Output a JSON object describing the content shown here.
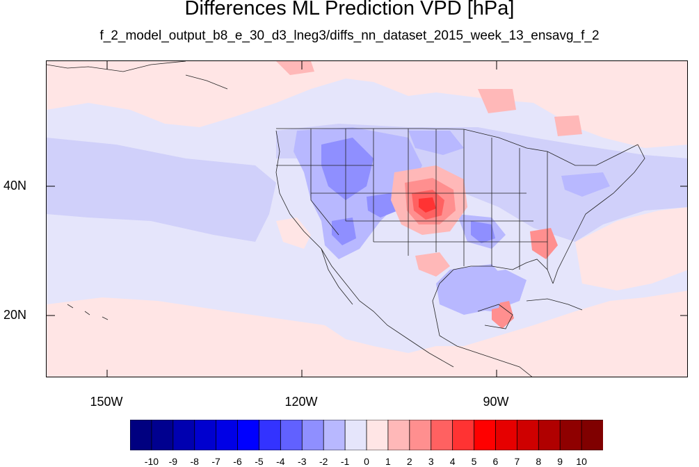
{
  "title": "Differences ML Prediction VPD [hPa]",
  "subtitle": "f_2_model_output_b8_e_30_d3_lneg3/diffs_nn_dataset_2015_week_13_ensavg_f_2",
  "map": {
    "type": "filled-contour-map",
    "region": "North America and eastern Pacific",
    "variable": "VPD difference",
    "units": "hPa",
    "lat_labels": [
      "40N",
      "20N"
    ],
    "lon_labels": [
      "150W",
      "120W",
      "90W"
    ],
    "lat_range": [
      10,
      59
    ],
    "lon_range": [
      -159.5,
      -60.5
    ]
  },
  "colorbar": {
    "levels": [
      "-10",
      "-9",
      "-8",
      "-7",
      "-6",
      "-5",
      "-4",
      "-3",
      "-2",
      "-1",
      "0",
      "1",
      "2",
      "3",
      "4",
      "5",
      "6",
      "7",
      "8",
      "9",
      "10"
    ],
    "colors": [
      "#000080",
      "#00008f",
      "#0000b0",
      "#0000cf",
      "#0000e6",
      "#0000ff",
      "#3333ff",
      "#6161ff",
      "#8f8fff",
      "#b8b8ff",
      "#e5e5fb",
      "#ffe5e5",
      "#ffb8b8",
      "#ff8f8f",
      "#ff6161",
      "#ff3333",
      "#ff0000",
      "#e60000",
      "#cf0000",
      "#b00000",
      "#8f0000",
      "#800000"
    ]
  }
}
